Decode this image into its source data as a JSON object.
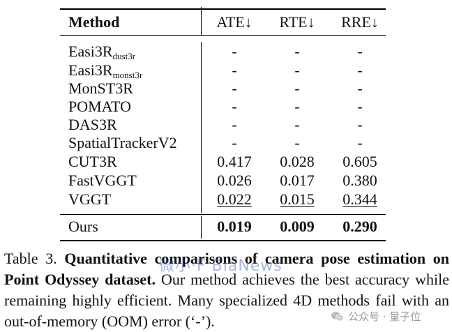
{
  "table": {
    "headers": {
      "method": "Method",
      "ate": "ATE↓",
      "rte": "RTE↓",
      "rre": "RRE↓"
    },
    "rows": [
      {
        "method": "Easi3R",
        "sub": "dust3r",
        "ate": "-",
        "rte": "-",
        "rre": "-"
      },
      {
        "method": "Easi3R",
        "sub": "monst3r",
        "ate": "-",
        "rte": "-",
        "rre": "-"
      },
      {
        "method": "MonST3R",
        "ate": "-",
        "rte": "-",
        "rre": "-"
      },
      {
        "method": "POMATO",
        "ate": "-",
        "rte": "-",
        "rre": "-"
      },
      {
        "method": "DAS3R",
        "ate": "-",
        "rte": "-",
        "rre": "-"
      },
      {
        "method": "SpatialTrackerV2",
        "ate": "-",
        "rte": "-",
        "rre": "-"
      },
      {
        "method": "CUT3R",
        "ate": "0.417",
        "rte": "0.028",
        "rre": "0.605"
      },
      {
        "method": "FastVGGT",
        "ate": "0.026",
        "rte": "0.017",
        "rre": "0.380"
      },
      {
        "method": "VGGT",
        "ate": "0.022",
        "rte": "0.015",
        "rre": "0.344"
      },
      {
        "method": "Ours",
        "ate": "0.019",
        "rte": "0.009",
        "rre": "0.290"
      }
    ]
  },
  "caption": {
    "label": "Table 3.",
    "bold_text": "Quantitative comparisons of camera pose estimation on Point Odyssey dataset.",
    "body_text": "Our method achieves the best accuracy while remaining highly efficient. Many specialized 4D methods fail with an out-of-memory (OOM) error (‘-’)."
  },
  "watermarks": {
    "overlay_text": "微小·F BiaNews",
    "brand_text": "公众号 · 量子位",
    "brand_icon": "wechat-icon"
  }
}
